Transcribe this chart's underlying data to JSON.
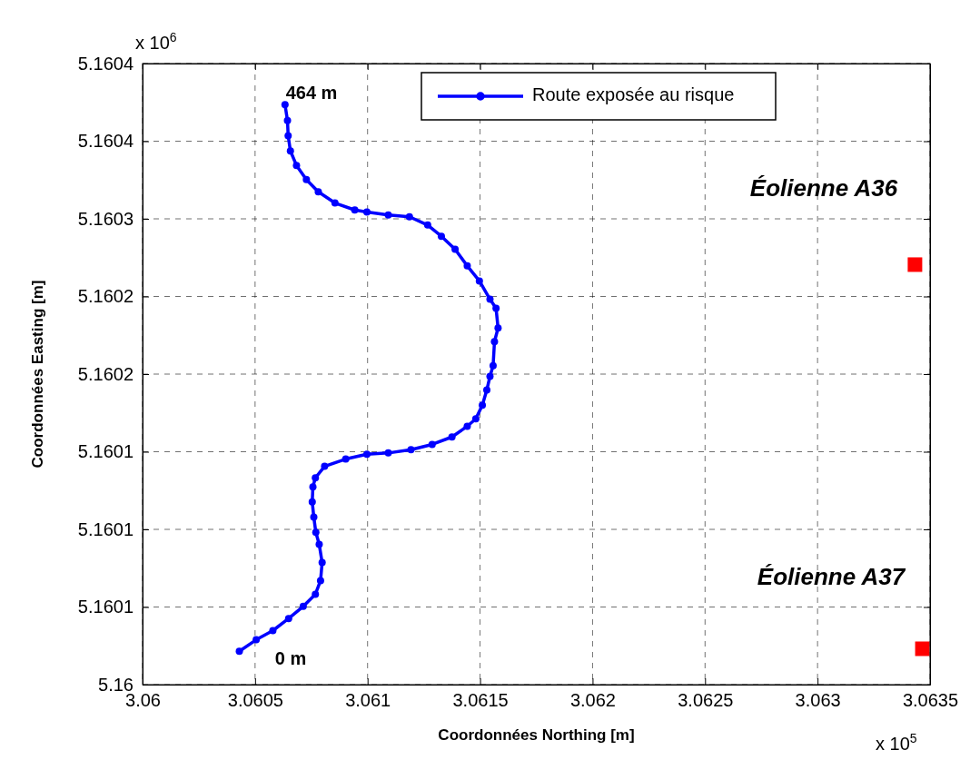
{
  "chart_data": {
    "type": "line",
    "xlabel": "Coordonnées Northing [m]",
    "ylabel": "Coordonnées Easting [m]",
    "xlim": [
      3.06,
      3.0635
    ],
    "xticks": [
      3.06,
      3.0605,
      3.061,
      3.0615,
      3.062,
      3.0625,
      3.063,
      3.0635
    ],
    "ylim": [
      5.16,
      5.1604
    ],
    "yticks": [
      {
        "value": 5.16,
        "label": "5.16"
      },
      {
        "value": 5.16005,
        "label": "5.1601"
      },
      {
        "value": 5.1601,
        "label": "5.1601"
      },
      {
        "value": 5.16015,
        "label": "5.1601"
      },
      {
        "value": 5.1602,
        "label": "5.1602"
      },
      {
        "value": 5.16025,
        "label": "5.1602"
      },
      {
        "value": 5.1603,
        "label": "5.1603"
      },
      {
        "value": 5.16035,
        "label": "5.1604"
      },
      {
        "value": 5.1604,
        "label": "5.1604"
      }
    ],
    "grid": true,
    "legend": "top right",
    "series": [
      {
        "name": "Route exposée au risque",
        "color": "#0000ff",
        "marker": "circle",
        "line_style": "solid",
        "x": [
          3.06043,
          3.060505,
          3.060579,
          3.060649,
          3.060714,
          3.060768,
          3.060791,
          3.060798,
          3.060785,
          3.06077,
          3.060761,
          3.060754,
          3.060757,
          3.060768,
          3.060809,
          3.060903,
          3.060997,
          3.061092,
          3.061193,
          3.061287,
          3.061375,
          3.061443,
          3.061481,
          3.06151,
          3.06153,
          3.061544,
          3.061558,
          3.061564,
          3.06158,
          3.061571,
          3.061544,
          3.061497,
          3.061443,
          3.061389,
          3.061328,
          3.061267,
          3.061186,
          3.061092,
          3.060997,
          3.060943,
          3.060855,
          3.060781,
          3.060728,
          3.060684,
          3.060657,
          3.060647,
          3.060644,
          3.060633
        ],
        "values": [
          5.1600215,
          5.1600289,
          5.1600348,
          5.1600426,
          5.1600504,
          5.1600582,
          5.160067,
          5.1600787,
          5.1600904,
          5.1600981,
          5.1601079,
          5.1601177,
          5.1601274,
          5.1601332,
          5.1601406,
          5.1601453,
          5.1601484,
          5.1601492,
          5.1601513,
          5.1601547,
          5.1601595,
          5.1601664,
          5.1601712,
          5.16018,
          5.1601898,
          5.1601985,
          5.1602054,
          5.1602209,
          5.1602297,
          5.1602424,
          5.1602482,
          5.16026,
          5.1602697,
          5.1602804,
          5.1602888,
          5.160296,
          5.1603013,
          5.1603025,
          5.1603044,
          5.1603057,
          5.1603102,
          5.1603174,
          5.1603253,
          5.1603344,
          5.1603437,
          5.1603535,
          5.1603633,
          5.1603736
        ]
      },
      {
        "type": "scatter",
        "color": "#ff0000",
        "marker": "square",
        "x": [
          3.063433,
          3.063466
        ],
        "values": [
          5.1602705,
          5.1600231
        ]
      }
    ],
    "annotations": [
      "464 m",
      "0 m",
      "Éolienne A36",
      "Éolienne A37",
      "x 10$^{6}$",
      "x 10$^{5}$"
    ]
  }
}
